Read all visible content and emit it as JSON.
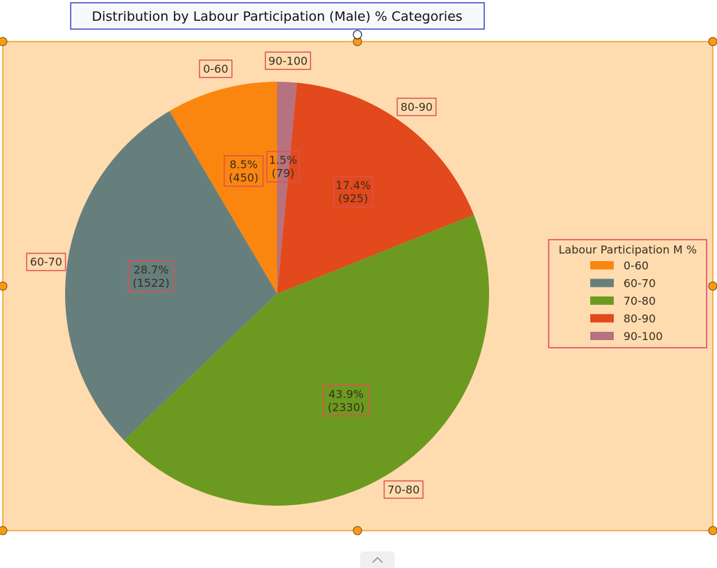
{
  "chart_data": {
    "type": "pie",
    "title": "Distribution by Labour Participation (Male) % Categories",
    "categories": [
      "0-60",
      "60-70",
      "70-80",
      "80-90",
      "90-100"
    ],
    "values": [
      450,
      1522,
      2330,
      925,
      79
    ],
    "percent_labels": [
      "8.5%",
      "28.7%",
      "43.9%",
      "17.4%",
      "1.5%"
    ],
    "count_labels": [
      "(450)",
      "(1522)",
      "(2330)",
      "(925)",
      "(79)"
    ],
    "colors": [
      "#fb860f",
      "#667f7c",
      "#6c9a21",
      "#e2491c",
      "#b6727f"
    ],
    "legend": {
      "title": "Labour Participation M %",
      "placement": "right"
    }
  },
  "colors": {
    "plot_background": "#fedcb0",
    "selection_border": "#f29b1e",
    "handle_fill": "#fb9a0e",
    "label_box_border": "#e05050",
    "title_box_border": "#3b3bc9"
  },
  "ui": {
    "expand_icon": "chevron-up-icon"
  }
}
